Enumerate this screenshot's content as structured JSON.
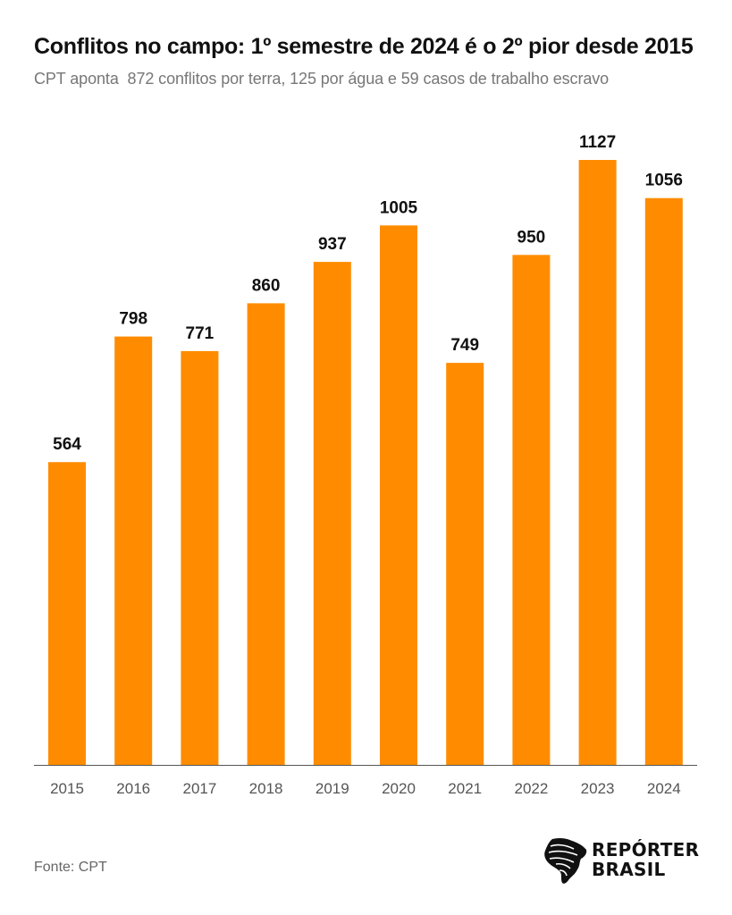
{
  "header": {
    "title": "Conflitos no campo: 1º semestre de 2024 é o 2º pior desde 2015",
    "subtitle": "CPT aponta  872 conflitos por terra, 125 por água e 59 casos de trabalho escravo"
  },
  "footer": {
    "source": "Fonte: CPT",
    "logo_line1": "REPÓRTER",
    "logo_line2": "BRASIL"
  },
  "colors": {
    "bar": "#FF8C00",
    "axis": "#555555",
    "tick_label": "#555555",
    "data_label": "#111111"
  },
  "chart_data": {
    "type": "bar",
    "title": "Conflitos no campo: 1º semestre de 2024 é o 2º pior desde 2015",
    "subtitle": "CPT aponta  872 conflitos por terra, 125 por água e 59 casos de trabalho escravo",
    "categories": [
      "2015",
      "2016",
      "2017",
      "2018",
      "2019",
      "2020",
      "2021",
      "2022",
      "2023",
      "2024"
    ],
    "values": [
      564,
      798,
      771,
      860,
      937,
      1005,
      749,
      950,
      1127,
      1056
    ],
    "xlabel": "",
    "ylabel": "",
    "ylim": [
      0,
      1127
    ],
    "grid": false,
    "legend": "none",
    "data_labels": true
  }
}
